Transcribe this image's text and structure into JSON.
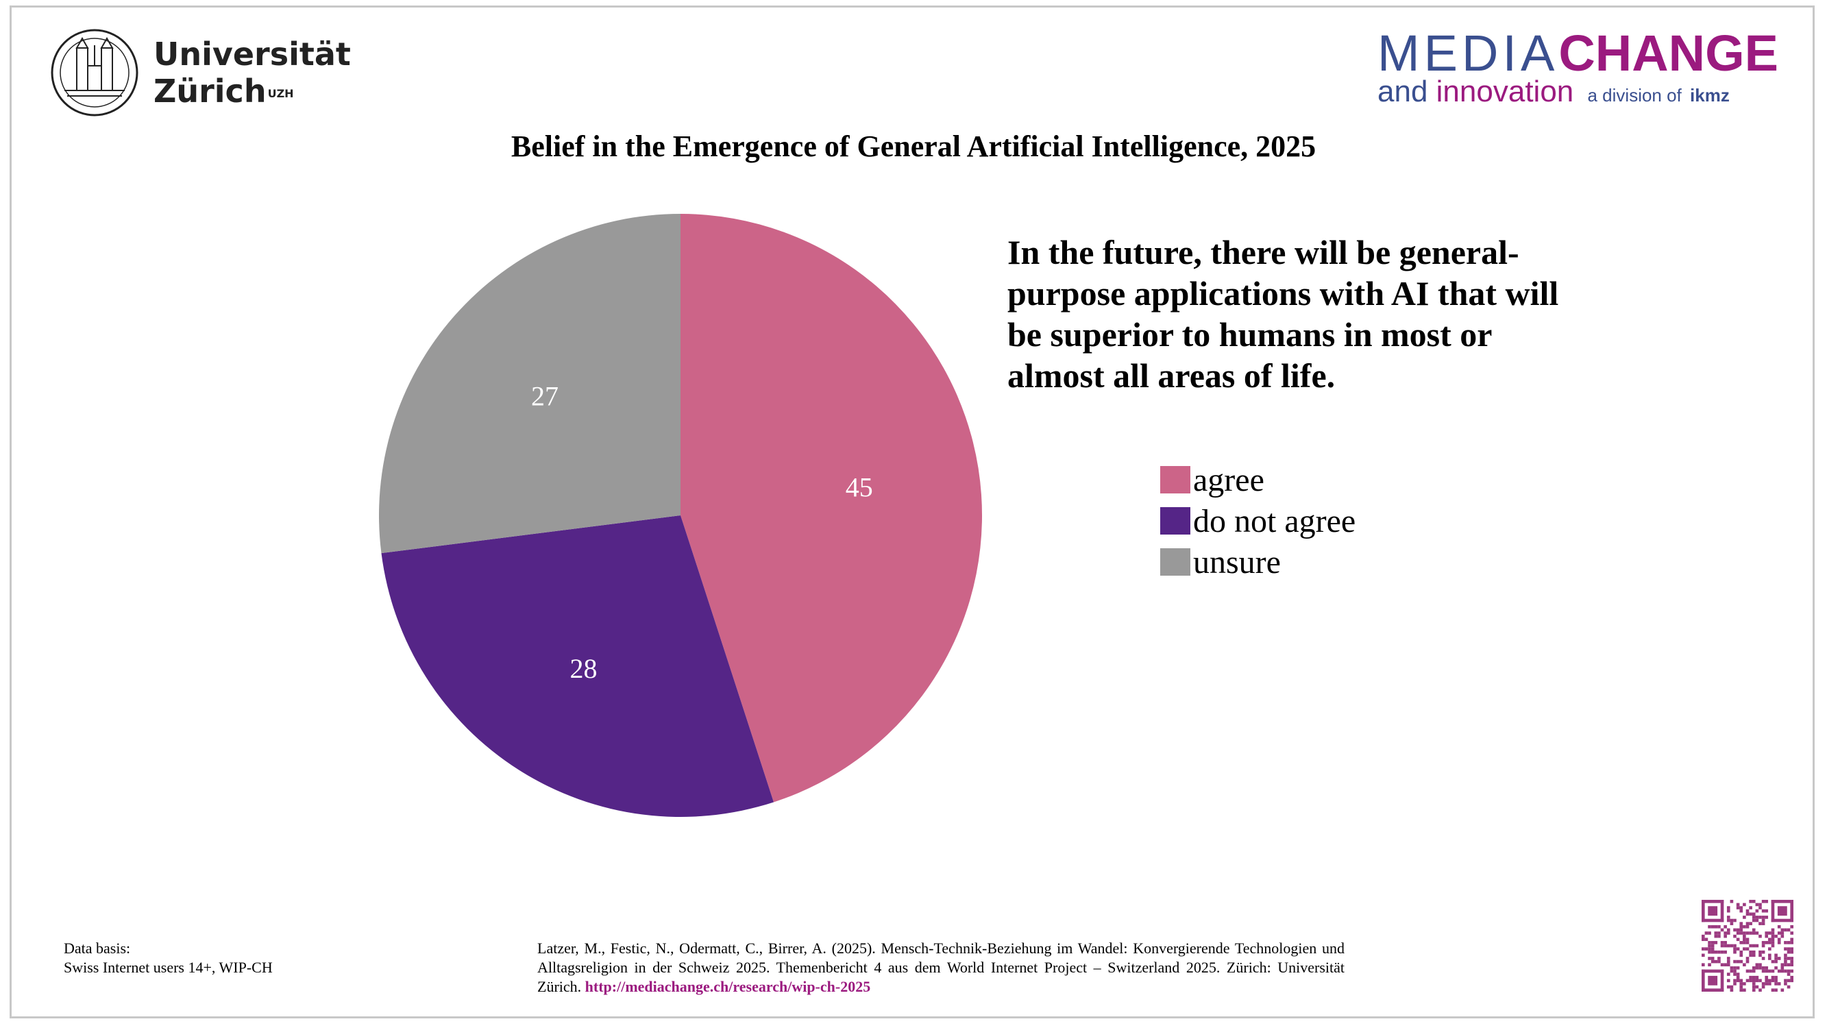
{
  "header": {
    "university": {
      "line1": "Universität",
      "line2": "Zürich",
      "superscript": "UZH",
      "seal_icon": "uzh-seal-icon"
    },
    "mediachange": {
      "media": "MEDIA",
      "change": "CHANGE",
      "and": "and",
      "innovation": "innovation",
      "division": "a division of",
      "ikmz": "ikmz"
    }
  },
  "title": "Belief in the Emergence of General Artificial Intelligence, 2025",
  "question": "In the future, there will be general-purpose applications with AI that will be superior to humans in most or almost all areas of life.",
  "chart_data": {
    "type": "pie",
    "title": "Belief in the Emergence of General Artificial Intelligence, 2025",
    "start_angle": "12 o'clock",
    "direction": "clockwise",
    "categories": [
      "agree",
      "do not agree",
      "unsure"
    ],
    "values": [
      45,
      28,
      27
    ],
    "labels": [
      "45",
      "28",
      "27"
    ],
    "colors": [
      "#cc6488",
      "#552587",
      "#999999"
    ],
    "legend": {
      "position": "right",
      "entries": [
        "agree",
        "do not agree",
        "unsure"
      ]
    }
  },
  "footer": {
    "data_basis_label": "Data basis:",
    "data_basis_value": "Swiss Internet users 14+, WIP-CH",
    "citation": "Latzer, M., Festic, N., Odermatt, C., Birrer, A. (2025). Mensch-Technik-Beziehung im Wandel: Konvergierende Technologien und Alltagsreligion in der Schweiz 2025. Themenbericht 4 aus dem World Internet Project – Switzerland 2025. Zürich: Universität Zürich.",
    "link": "http://mediachange.ch/research/wip-ch-2025",
    "qr_icon": "qr-code-icon"
  }
}
